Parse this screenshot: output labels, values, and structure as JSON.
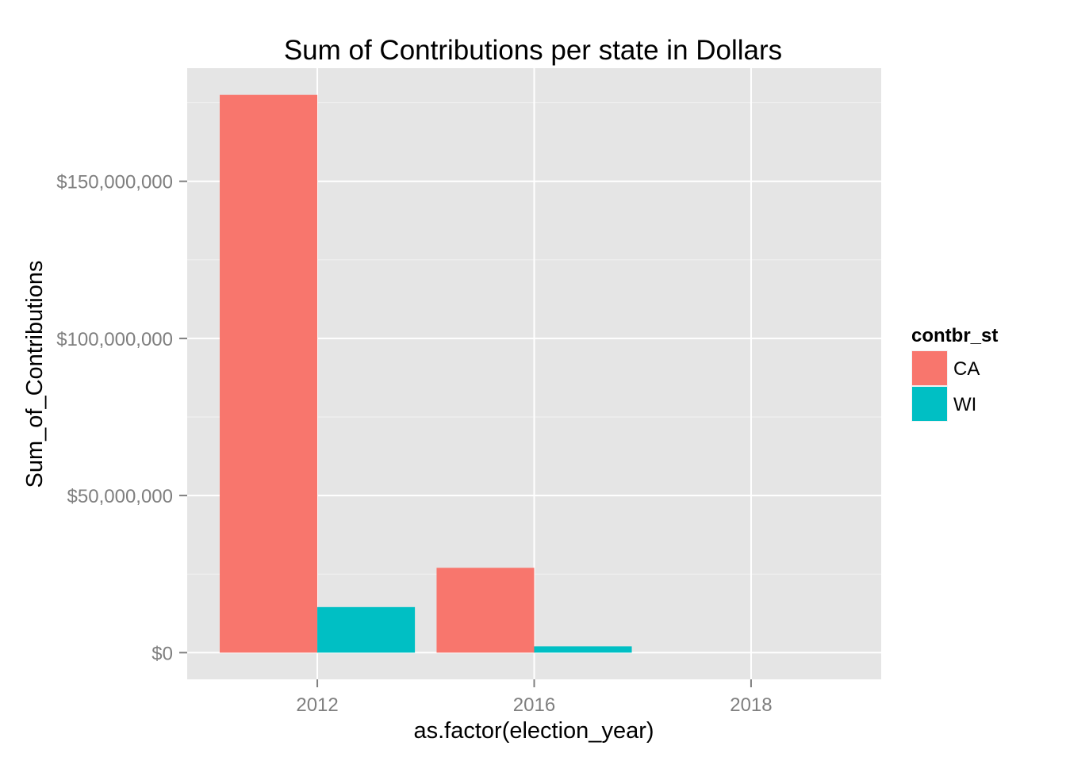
{
  "chart_data": {
    "type": "bar",
    "title": "Sum of Contributions per state in Dollars",
    "xlabel": "as.factor(election_year)",
    "ylabel": "Sum_of_Contributions",
    "categories": [
      "2012",
      "2016",
      "2018"
    ],
    "series": [
      {
        "name": "CA",
        "color": "#F8766D",
        "values": [
          177500000,
          27000000,
          0
        ]
      },
      {
        "name": "WI",
        "color": "#00BFC4",
        "values": [
          14500000,
          2000000,
          0
        ]
      }
    ],
    "ylim": [
      -8500000,
      186000000
    ],
    "yticks": [
      0,
      50000000,
      100000000,
      150000000
    ],
    "ytick_labels": [
      "$0",
      "$50,000,000",
      "$100,000,000",
      "$150,000,000"
    ],
    "legend": {
      "title": "contbr_st",
      "position": "right",
      "entries": [
        "CA",
        "WI"
      ]
    },
    "grid": true,
    "panel_background": "#E5E5E5"
  }
}
